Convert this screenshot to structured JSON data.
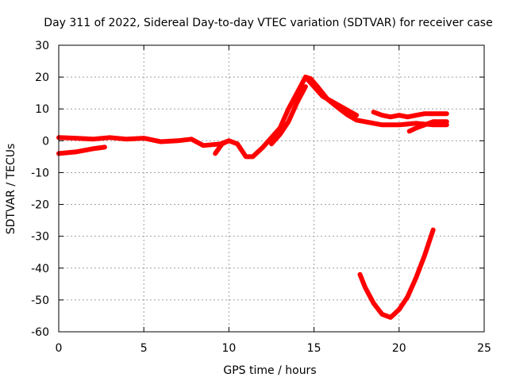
{
  "chart_data": {
    "type": "scatter",
    "title": "Day 311 of 2022, Sidereal Day-to-day VTEC variation (SDTVAR) for receiver case",
    "xlabel": "GPS time / hours",
    "ylabel": "SDTVAR / TECUs",
    "xlim": [
      0,
      25
    ],
    "ylim": [
      -60,
      30
    ],
    "xticks": [
      "0",
      "5",
      "10",
      "15",
      "20",
      "25"
    ],
    "yticks": [
      "30",
      "20",
      "10",
      "0",
      "-10",
      "-20",
      "-30",
      "-40",
      "-50",
      "-60"
    ],
    "grid": true,
    "color": "#ff0000",
    "series": [
      {
        "name": "main-track",
        "points": [
          [
            0,
            1
          ],
          [
            1,
            0.8
          ],
          [
            2,
            0.5
          ],
          [
            3,
            1
          ],
          [
            4,
            0.5
          ],
          [
            5,
            0.8
          ],
          [
            6,
            -0.3
          ],
          [
            7,
            0
          ],
          [
            7.8,
            0.5
          ],
          [
            8.5,
            -1.5
          ],
          [
            9.5,
            -1
          ],
          [
            10,
            0
          ],
          [
            10.5,
            -1
          ],
          [
            11,
            -5
          ],
          [
            11.4,
            -5
          ],
          [
            12,
            -2
          ],
          [
            12.5,
            1
          ],
          [
            13,
            4
          ],
          [
            13.5,
            10
          ],
          [
            14,
            15
          ],
          [
            14.5,
            20
          ],
          [
            14.8,
            19.5
          ],
          [
            15.2,
            17
          ],
          [
            15.8,
            13
          ],
          [
            16.5,
            10
          ],
          [
            17,
            8
          ],
          [
            17.5,
            6.5
          ],
          [
            18,
            6
          ],
          [
            18.5,
            5.5
          ],
          [
            19,
            5
          ],
          [
            19.5,
            5
          ],
          [
            20,
            5
          ],
          [
            21,
            5.5
          ],
          [
            22,
            5
          ],
          [
            22.8,
            5
          ]
        ]
      },
      {
        "name": "lower-track",
        "points": [
          [
            0,
            -4
          ],
          [
            1,
            -3.5
          ],
          [
            2,
            -2.5
          ],
          [
            2.7,
            -2
          ]
        ]
      },
      {
        "name": "descent-branch",
        "points": [
          [
            14.5,
            20
          ],
          [
            15,
            17
          ],
          [
            15.5,
            14
          ],
          [
            16.5,
            11
          ],
          [
            17.5,
            8
          ]
        ]
      },
      {
        "name": "mid-track",
        "points": [
          [
            12.5,
            -1
          ],
          [
            13,
            2
          ],
          [
            13.5,
            6
          ],
          [
            14,
            12
          ],
          [
            14.5,
            17
          ]
        ]
      },
      {
        "name": "spike-9",
        "points": [
          [
            9.2,
            -4
          ],
          [
            9.6,
            -1
          ],
          [
            10,
            0
          ]
        ]
      },
      {
        "name": "upper-right-track",
        "points": [
          [
            18.5,
            9
          ],
          [
            19,
            8
          ],
          [
            19.5,
            7.5
          ],
          [
            20,
            8
          ],
          [
            20.5,
            7.5
          ],
          [
            21,
            8
          ],
          [
            21.5,
            8.5
          ],
          [
            22,
            8.5
          ],
          [
            22.8,
            8.5
          ]
        ]
      },
      {
        "name": "lower-right-track",
        "points": [
          [
            20.6,
            3
          ],
          [
            21,
            4
          ],
          [
            21.5,
            5
          ],
          [
            22,
            6
          ],
          [
            22.8,
            6
          ]
        ]
      },
      {
        "name": "dip-curve",
        "points": [
          [
            17.7,
            -42
          ],
          [
            18,
            -46
          ],
          [
            18.5,
            -51
          ],
          [
            19,
            -54.5
          ],
          [
            19.5,
            -55.5
          ],
          [
            20,
            -53
          ],
          [
            20.5,
            -49
          ],
          [
            21,
            -43
          ],
          [
            21.5,
            -36
          ],
          [
            22,
            -28
          ]
        ]
      }
    ]
  }
}
